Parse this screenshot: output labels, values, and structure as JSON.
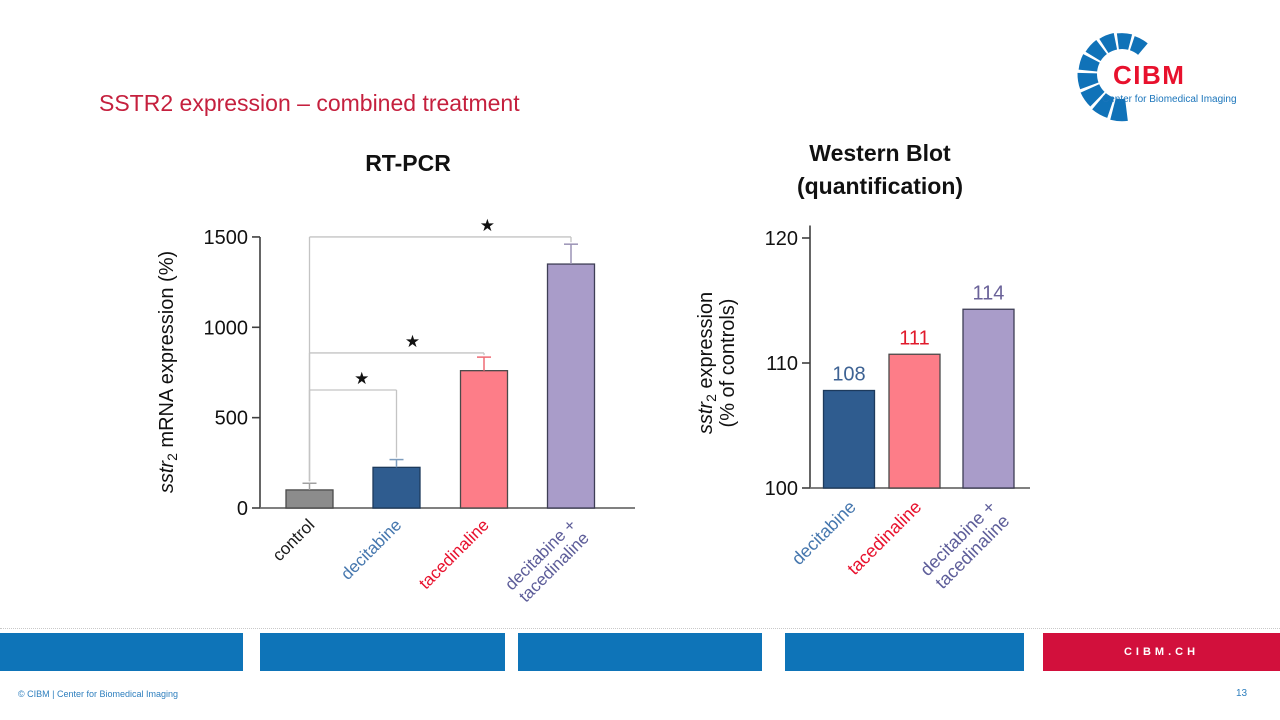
{
  "slide": {
    "title": "SSTR2 expression – combined treatment",
    "title_color": "#c5203e",
    "page_number": "13"
  },
  "logo": {
    "name": "CIBM",
    "tagline": "Center for Biomedical Imaging",
    "name_color": "#e8112d",
    "blue": "#1072b8"
  },
  "footer": {
    "cibm_ch_label": "CIBM.CH",
    "copyright": "© CIBM | Center for Biomedical Imaging",
    "bar_blue": "#0e74b8",
    "bar_red": "#d2103c",
    "text_blue": "#2e7fbe"
  },
  "chart_data": [
    {
      "id": "rtpcr",
      "type": "bar",
      "title": "RT-PCR",
      "ylabel": "sstr2 mRNA expression (%)",
      "ylabel_lines": [
        [
          {
            "italic": "sstr"
          },
          {
            "sub": "2"
          },
          {
            "text": " mRNA expression (%)"
          }
        ]
      ],
      "ylim": [
        0,
        1530
      ],
      "yticks": [
        0,
        500,
        1000,
        1500
      ],
      "categories": [
        "control",
        "decitabine",
        "tacedinaline",
        "decitabine +\ntacedinaline"
      ],
      "values": [
        100,
        225,
        760,
        1350
      ],
      "errors_top": [
        137,
        268,
        835,
        1460
      ],
      "bar_colors": [
        "#8c8c8c",
        "#2f5c8f",
        "#fd7d88",
        "#a99cc9"
      ],
      "bar_edge_colors": [
        "#4a4a4a",
        "#1d3a5c",
        "#4a4a4a",
        "#3e3e55"
      ],
      "error_colors": [
        "#a0a0a0",
        "#7d9cbd",
        "#ef6a74",
        "#9a92b5"
      ],
      "category_colors": [
        "#1a1a1a",
        "#4677ae",
        "#e8112d",
        "#5d5d99"
      ],
      "significance": [
        {
          "from": 0,
          "to": 1,
          "level": 653,
          "marker": "★",
          "star_frac": 0.6
        },
        {
          "from": 0,
          "to": 2,
          "level": 858,
          "marker": "★",
          "star_frac": 0.59
        },
        {
          "from": 0,
          "to": 3,
          "level": 1500,
          "marker": "★",
          "star_frac": 0.68
        }
      ],
      "bracket_color": "#c4c4c4",
      "grid": false,
      "legend": null
    },
    {
      "id": "western_blot",
      "type": "bar",
      "title": "Western Blot (quantification)",
      "title_lines": [
        "Western Blot",
        "(quantification)"
      ],
      "ylabel": "sstr2 expression (% of controls)",
      "ylabel_lines": [
        [
          {
            "italic": "sstr"
          },
          {
            "sub": "2"
          },
          {
            "text": " expression"
          }
        ],
        [
          {
            "text": "(% of controls)"
          }
        ]
      ],
      "ylim": [
        100,
        121
      ],
      "yticks": [
        100,
        110,
        120
      ],
      "categories": [
        "decitabine",
        "tacedinaline",
        "decitabine +\ntacedinaline"
      ],
      "values": [
        107.8,
        110.7,
        114.3
      ],
      "value_labels": [
        "108",
        "111",
        "114"
      ],
      "value_label_colors": [
        "#3d6293",
        "#e01b2c",
        "#6a6299"
      ],
      "bar_colors": [
        "#2f5c8f",
        "#fd7d88",
        "#a99cc9"
      ],
      "bar_edge_colors": [
        "#1d3a5c",
        "#4a4a4a",
        "#3e3e55"
      ],
      "category_colors": [
        "#4677ae",
        "#e8112d",
        "#5d5d99"
      ],
      "grid": false,
      "legend": null
    }
  ]
}
